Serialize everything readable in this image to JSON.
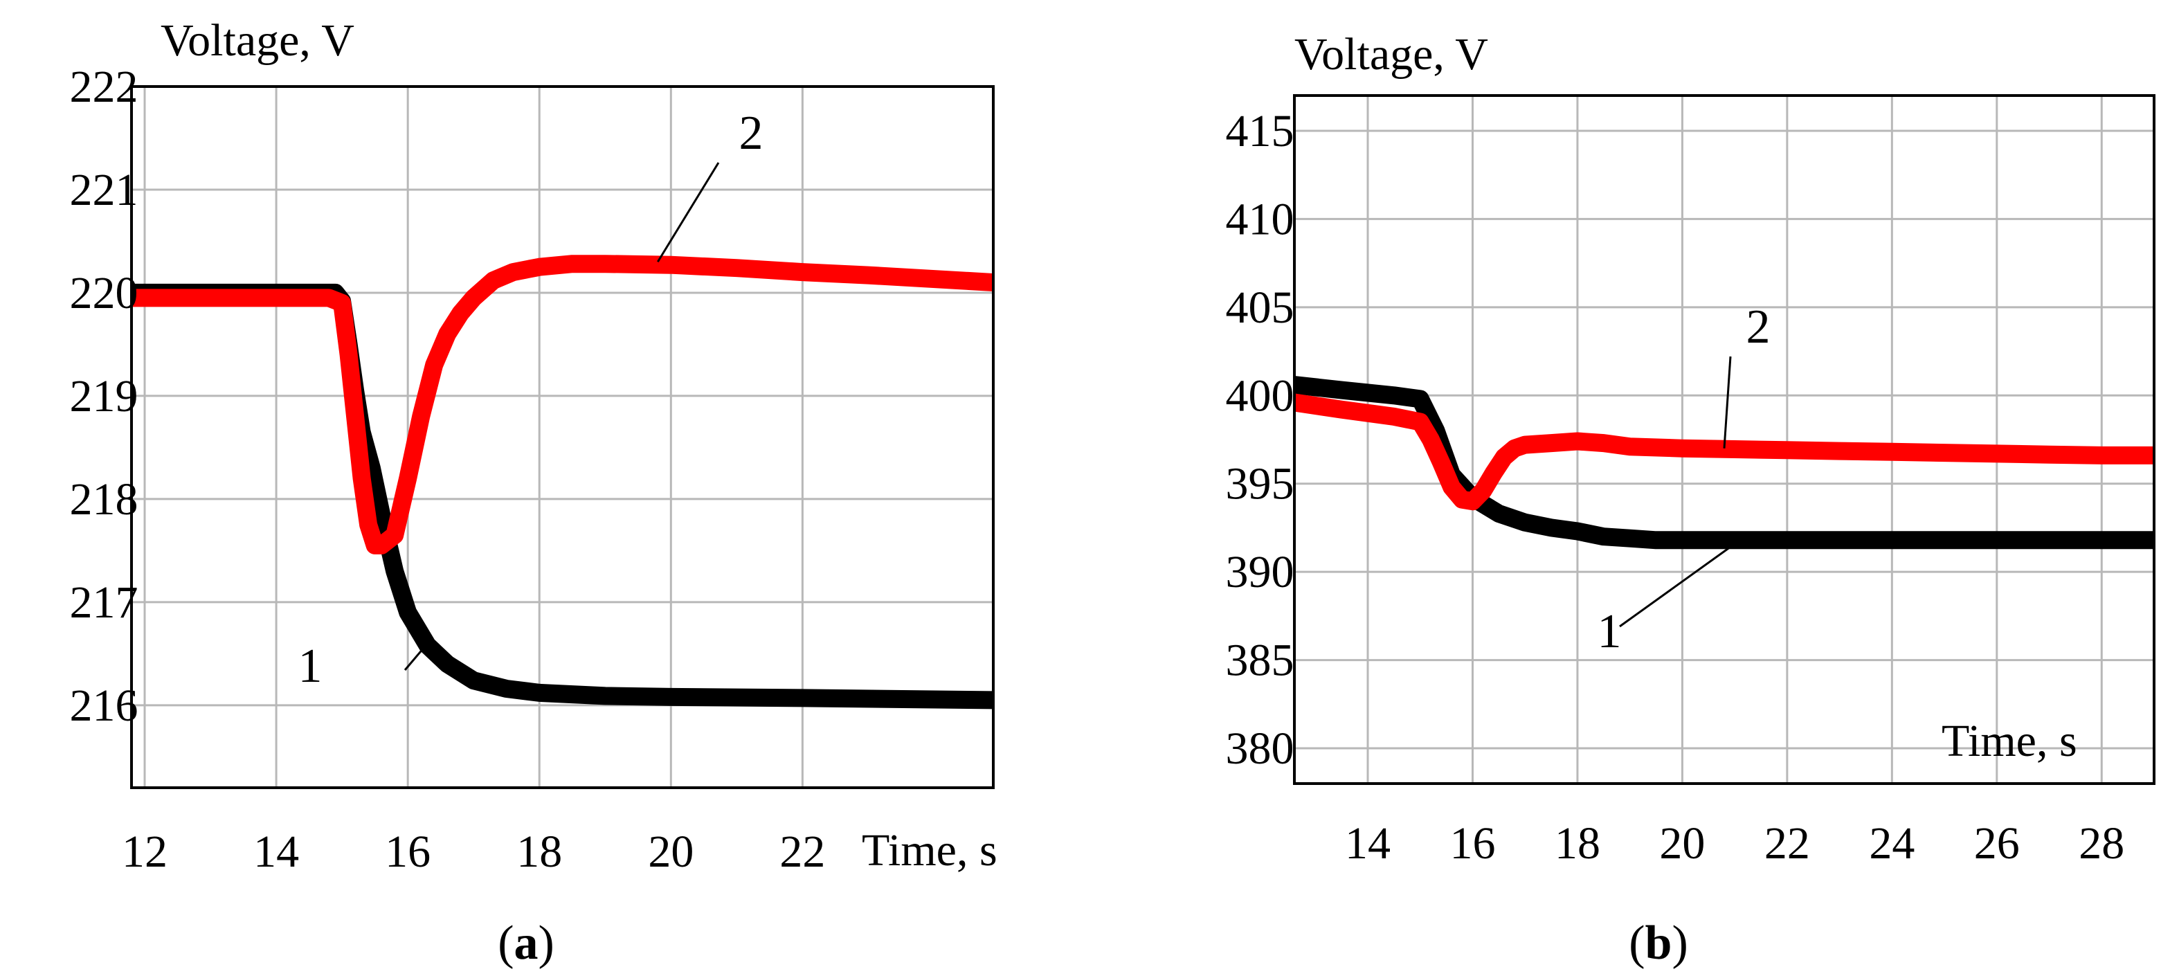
{
  "chart_data": [
    {
      "type": "line",
      "panel_label": "a",
      "title": "",
      "xlabel": "Time, s",
      "ylabel": "Voltage, V",
      "xlim": [
        11.8,
        24.9
      ],
      "ylim": [
        215.2,
        222.0
      ],
      "xticks": [
        12,
        14,
        16,
        18,
        20,
        22
      ],
      "yticks": [
        216,
        217,
        218,
        219,
        220,
        221,
        222
      ],
      "grid": true,
      "colors": {
        "1": "#000000",
        "2": "#ff0000"
      },
      "series": [
        {
          "name": "1",
          "color": "#000000",
          "x": [
            11.8,
            13.0,
            14.0,
            14.5,
            14.9,
            15.0,
            15.1,
            15.2,
            15.3,
            15.45,
            15.6,
            15.8,
            16.0,
            16.3,
            16.6,
            17.0,
            17.5,
            18.0,
            19.0,
            20.0,
            22.0,
            24.9
          ],
          "y": [
            220.0,
            220.0,
            220.0,
            220.0,
            220.0,
            219.92,
            219.5,
            219.05,
            218.65,
            218.3,
            217.85,
            217.3,
            216.9,
            216.58,
            216.4,
            216.24,
            216.16,
            216.12,
            216.09,
            216.08,
            216.07,
            216.05
          ]
        },
        {
          "name": "2",
          "color": "#ff0000",
          "x": [
            11.8,
            13.0,
            14.0,
            14.8,
            15.0,
            15.1,
            15.2,
            15.3,
            15.4,
            15.5,
            15.6,
            15.8,
            16.0,
            16.2,
            16.4,
            16.6,
            16.8,
            17.0,
            17.3,
            17.6,
            18.0,
            18.5,
            19.0,
            20.0,
            21.0,
            22.0,
            23.0,
            24.9
          ],
          "y": [
            219.95,
            219.95,
            219.95,
            219.95,
            219.9,
            219.4,
            218.8,
            218.2,
            217.75,
            217.55,
            217.55,
            217.65,
            218.2,
            218.8,
            219.3,
            219.6,
            219.8,
            219.95,
            220.12,
            220.2,
            220.25,
            220.28,
            220.28,
            220.27,
            220.24,
            220.2,
            220.17,
            220.1
          ]
        }
      ],
      "annotations": [
        {
          "text": "2",
          "target_series": "2",
          "x": 19.8,
          "y": 220.3
        },
        {
          "text": "1",
          "target_series": "1",
          "x": 16.3,
          "y": 216.6
        }
      ]
    },
    {
      "type": "line",
      "panel_label": "b",
      "title": "",
      "xlabel": "Time, s",
      "ylabel": "Voltage, V",
      "xlim": [
        12.6,
        29.0
      ],
      "ylim": [
        378.0,
        417.0
      ],
      "xticks": [
        14,
        16,
        18,
        20,
        22,
        24,
        26,
        28
      ],
      "yticks": [
        380,
        385,
        390,
        395,
        400,
        405,
        410,
        415
      ],
      "grid": true,
      "colors": {
        "1": "#000000",
        "2": "#ff0000"
      },
      "series": [
        {
          "name": "1",
          "color": "#000000",
          "x": [
            12.6,
            13.5,
            14.5,
            15.0,
            15.3,
            15.6,
            16.0,
            16.5,
            17.0,
            17.5,
            18.0,
            18.5,
            19.0,
            19.5,
            20.0,
            21.0,
            22.0,
            23.0,
            24.0,
            25.0,
            26.0,
            27.0,
            28.0,
            29.0
          ],
          "y": [
            400.6,
            400.3,
            400.0,
            399.8,
            398.0,
            395.5,
            394.2,
            393.3,
            392.8,
            392.5,
            392.3,
            392.0,
            391.9,
            391.8,
            391.8,
            391.8,
            391.8,
            391.8,
            391.8,
            391.8,
            391.8,
            391.8,
            391.8,
            391.8
          ]
        },
        {
          "name": "2",
          "color": "#ff0000",
          "x": [
            12.6,
            13.5,
            14.5,
            15.0,
            15.2,
            15.4,
            15.6,
            15.8,
            16.0,
            16.2,
            16.4,
            16.6,
            16.8,
            17.0,
            17.5,
            18.0,
            18.5,
            19.0,
            20.0,
            21.0,
            22.0,
            23.0,
            24.0,
            25.0,
            26.0,
            27.0,
            28.0,
            29.0
          ],
          "y": [
            399.6,
            399.2,
            398.8,
            398.5,
            397.5,
            396.2,
            394.8,
            394.1,
            394.0,
            394.6,
            395.6,
            396.5,
            397.0,
            397.2,
            397.3,
            397.4,
            397.3,
            397.1,
            397.0,
            396.95,
            396.9,
            396.85,
            396.8,
            396.75,
            396.7,
            396.65,
            396.6,
            396.6
          ]
        }
      ],
      "annotations": [
        {
          "text": "2",
          "target_series": "2",
          "x": 20.8,
          "y": 397.0
        },
        {
          "text": "1",
          "target_series": "1",
          "x": 21.1,
          "y": 391.8
        }
      ]
    }
  ]
}
